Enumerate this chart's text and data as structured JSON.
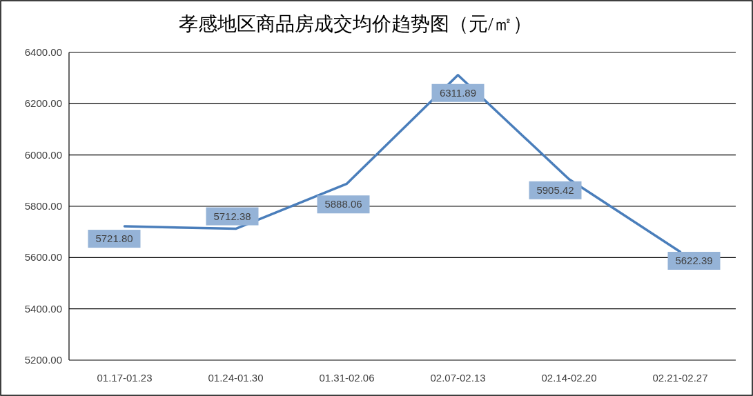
{
  "chart_data": {
    "type": "line",
    "title": "孝感地区商品房成交均价趋势图（元/㎡）",
    "categories": [
      "01.17-01.23",
      "01.24-01.30",
      "01.31-02.06",
      "02.07-02.13",
      "02.14-02.20",
      "02.21-02.27"
    ],
    "series": [
      {
        "color": "#4a7ebb",
        "values": [
          5721.8,
          5712.38,
          5888.06,
          6311.89,
          5905.42,
          5622.39
        ],
        "value_labels": [
          "5721.80",
          "5712.38",
          "5888.06",
          "6311.89",
          "5905.42",
          "5622.39"
        ]
      }
    ],
    "ylim": [
      5200,
      6400
    ],
    "yticks": [
      {
        "value": 5200,
        "label": "5200.00"
      },
      {
        "value": 5400,
        "label": "5400.00"
      },
      {
        "value": 5600,
        "label": "5600.00"
      },
      {
        "value": 5800,
        "label": "5800.00"
      },
      {
        "value": 6000,
        "label": "6000.00"
      },
      {
        "value": 6200,
        "label": "6200.00"
      },
      {
        "value": 6400,
        "label": "6400.00"
      }
    ],
    "grid": "y",
    "marker": "none",
    "line_style": "solid"
  }
}
